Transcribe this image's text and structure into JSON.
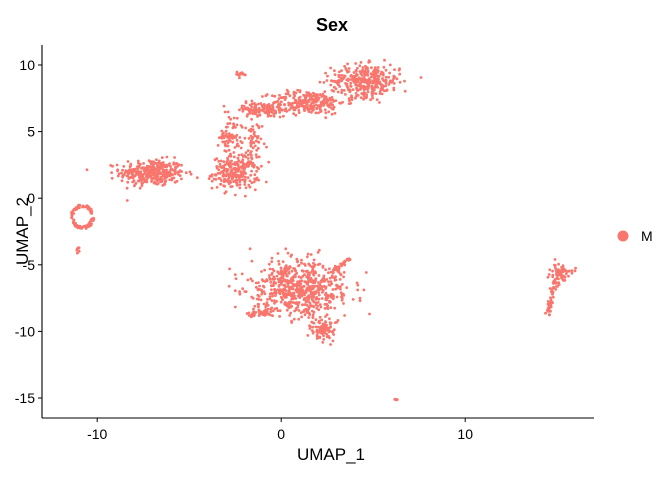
{
  "chart_data": {
    "type": "scatter",
    "title": "Sex",
    "xlabel": "UMAP_1",
    "ylabel": "UMAP_2",
    "xlim": [
      -13,
      17
    ],
    "ylim": [
      -16.5,
      11.5
    ],
    "xticks": [
      -10,
      0,
      10
    ],
    "yticks": [
      10,
      5,
      0,
      -5,
      -10,
      -15
    ],
    "grid": false,
    "legend": {
      "position": "right",
      "entries": [
        {
          "label": "M",
          "color": "#F8766D"
        }
      ]
    },
    "series": [
      {
        "name": "M",
        "color": "#F8766D",
        "clusters": [
          {
            "shape": "blob",
            "cx": -7.0,
            "cy": 1.9,
            "rx": 1.6,
            "ry": 0.9,
            "n": 340
          },
          {
            "shape": "blob",
            "cx": -2.5,
            "cy": 1.9,
            "rx": 1.1,
            "ry": 1.1,
            "n": 230
          },
          {
            "shape": "blob",
            "cx": -2.8,
            "cy": 4.6,
            "rx": 0.5,
            "ry": 1.2,
            "n": 60
          },
          {
            "shape": "blob",
            "cx": -1.6,
            "cy": 4.0,
            "rx": 0.5,
            "ry": 1.6,
            "n": 60
          },
          {
            "shape": "blob",
            "cx": -1.0,
            "cy": 6.6,
            "rx": 1.6,
            "ry": 0.5,
            "n": 130
          },
          {
            "shape": "blob",
            "cx": 1.5,
            "cy": 7.2,
            "rx": 1.8,
            "ry": 0.8,
            "n": 240
          },
          {
            "shape": "blob",
            "cx": 4.6,
            "cy": 8.8,
            "rx": 1.7,
            "ry": 1.1,
            "n": 340
          },
          {
            "shape": "blob",
            "cx": -2.2,
            "cy": 9.3,
            "rx": 0.3,
            "ry": 0.2,
            "n": 14
          },
          {
            "shape": "ring",
            "cx": -10.8,
            "cy": -1.4,
            "rx": 0.6,
            "ry": 0.9,
            "n": 85
          },
          {
            "shape": "blob",
            "cx": -11.0,
            "cy": -3.9,
            "rx": 0.15,
            "ry": 0.3,
            "n": 8
          },
          {
            "shape": "blob",
            "cx": 1.0,
            "cy": -6.8,
            "rx": 2.4,
            "ry": 1.9,
            "n": 640
          },
          {
            "shape": "blob",
            "cx": 2.3,
            "cy": -9.8,
            "rx": 0.6,
            "ry": 0.8,
            "n": 90
          },
          {
            "shape": "line",
            "x1": 2.8,
            "y1": -5.4,
            "x2": 3.9,
            "y2": -4.4,
            "spread": 0.15,
            "n": 24
          },
          {
            "shape": "line",
            "x1": -1.8,
            "y1": -8.8,
            "x2": -0.5,
            "y2": -8.5,
            "spread": 0.25,
            "n": 40
          },
          {
            "shape": "blob",
            "cx": 15.2,
            "cy": -5.6,
            "rx": 0.5,
            "ry": 0.5,
            "n": 75
          },
          {
            "shape": "line",
            "x1": 14.9,
            "y1": -6.0,
            "x2": 14.5,
            "y2": -8.7,
            "spread": 0.2,
            "n": 48
          },
          {
            "shape": "blob",
            "cx": 6.2,
            "cy": -15.1,
            "rx": 0.12,
            "ry": 0.12,
            "n": 5
          }
        ]
      }
    ]
  }
}
